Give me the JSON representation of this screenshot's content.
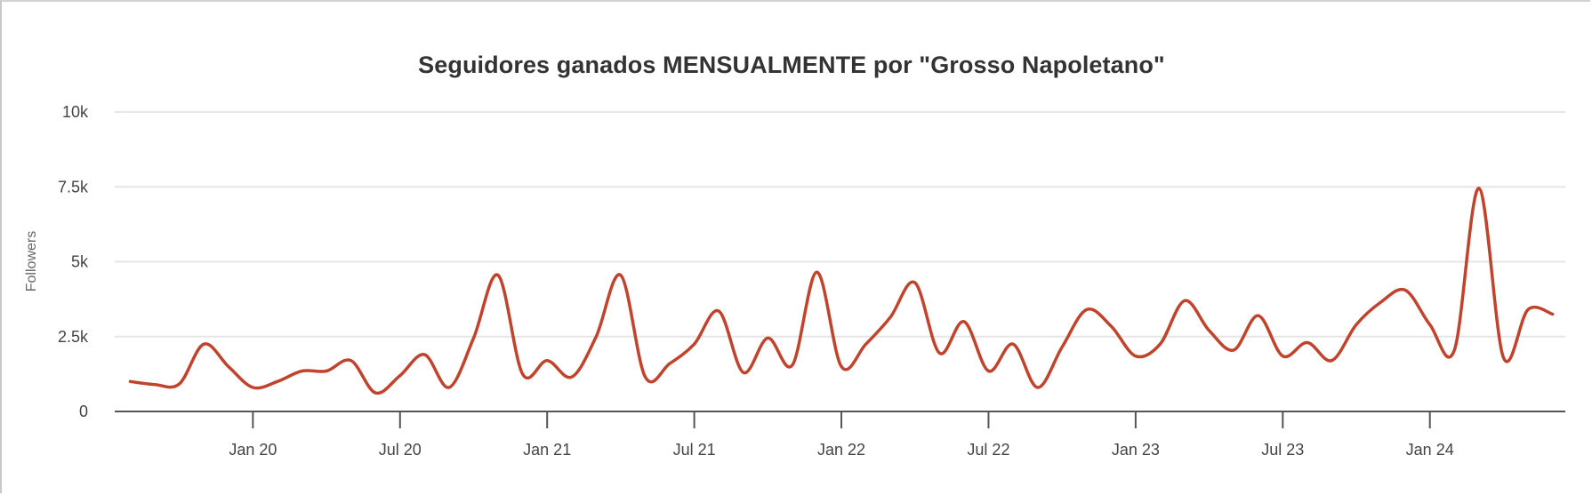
{
  "chart": {
    "title": "Seguidores ganados MENSUALMENTE por \"Grosso Napoletano\"",
    "y_axis_title": "Followers",
    "line_color": "#c1432c",
    "y_ticks": [
      "0",
      "2.5k",
      "5k",
      "7.5k",
      "10k"
    ],
    "x_ticks": [
      "Jan 20",
      "Jul 20",
      "Jan 21",
      "Jul 21",
      "Jan 22",
      "Jul 22",
      "Jan 23",
      "Jul 23",
      "Jan 24"
    ]
  },
  "chart_data": {
    "type": "line",
    "title": "Seguidores ganados MENSUALMENTE por \"Grosso Napoletano\"",
    "xlabel": "",
    "ylabel": "Followers",
    "ylim": [
      0,
      10000
    ],
    "yticks": [
      0,
      2500,
      5000,
      7500,
      10000
    ],
    "ytick_labels": [
      "0",
      "2.5k",
      "5k",
      "7.5k",
      "10k"
    ],
    "xtick_labels": [
      "Jan 20",
      "Jul 20",
      "Jan 21",
      "Jul 21",
      "Jan 22",
      "Jul 22",
      "Jan 23",
      "Jul 23",
      "Jan 24"
    ],
    "grid": true,
    "legend": "none",
    "x": [
      "Aug 19",
      "Sep 19",
      "Oct 19",
      "Nov 19",
      "Dec 19",
      "Jan 20",
      "Feb 20",
      "Mar 20",
      "Apr 20",
      "May 20",
      "Jun 20",
      "Jul 20",
      "Aug 20",
      "Sep 20",
      "Oct 20",
      "Nov 20",
      "Dec 20",
      "Jan 21",
      "Feb 21",
      "Mar 21",
      "Apr 21",
      "May 21",
      "Jun 21",
      "Jul 21",
      "Aug 21",
      "Sep 21",
      "Oct 21",
      "Nov 21",
      "Dec 21",
      "Jan 22",
      "Feb 22",
      "Mar 22",
      "Apr 22",
      "May 22",
      "Jun 22",
      "Jul 22",
      "Aug 22",
      "Sep 22",
      "Oct 22",
      "Nov 22",
      "Dec 22",
      "Jan 23",
      "Feb 23",
      "Mar 23",
      "Apr 23",
      "May 23",
      "Jun 23",
      "Jul 23",
      "Aug 23",
      "Sep 23",
      "Oct 23",
      "Nov 23",
      "Dec 23",
      "Jan 24",
      "Feb 24",
      "Mar 24",
      "Apr 24",
      "May 24",
      "Jun 24"
    ],
    "series": [
      {
        "name": "Followers",
        "color": "#c1432c",
        "values": [
          1000,
          900,
          920,
          2250,
          1500,
          800,
          1000,
          1350,
          1350,
          1700,
          620,
          1200,
          1900,
          800,
          2450,
          4550,
          1250,
          1700,
          1150,
          2500,
          4550,
          1150,
          1600,
          2250,
          3350,
          1300,
          2450,
          1550,
          4650,
          1500,
          2250,
          3150,
          4300,
          1950,
          3000,
          1350,
          2250,
          800,
          2150,
          3400,
          2850,
          1850,
          2250,
          3700,
          2700,
          2050,
          3200,
          1850,
          2300,
          1700,
          2900,
          3650,
          4050,
          2900,
          2050,
          7450,
          1800,
          3400,
          3250
        ]
      }
    ]
  }
}
